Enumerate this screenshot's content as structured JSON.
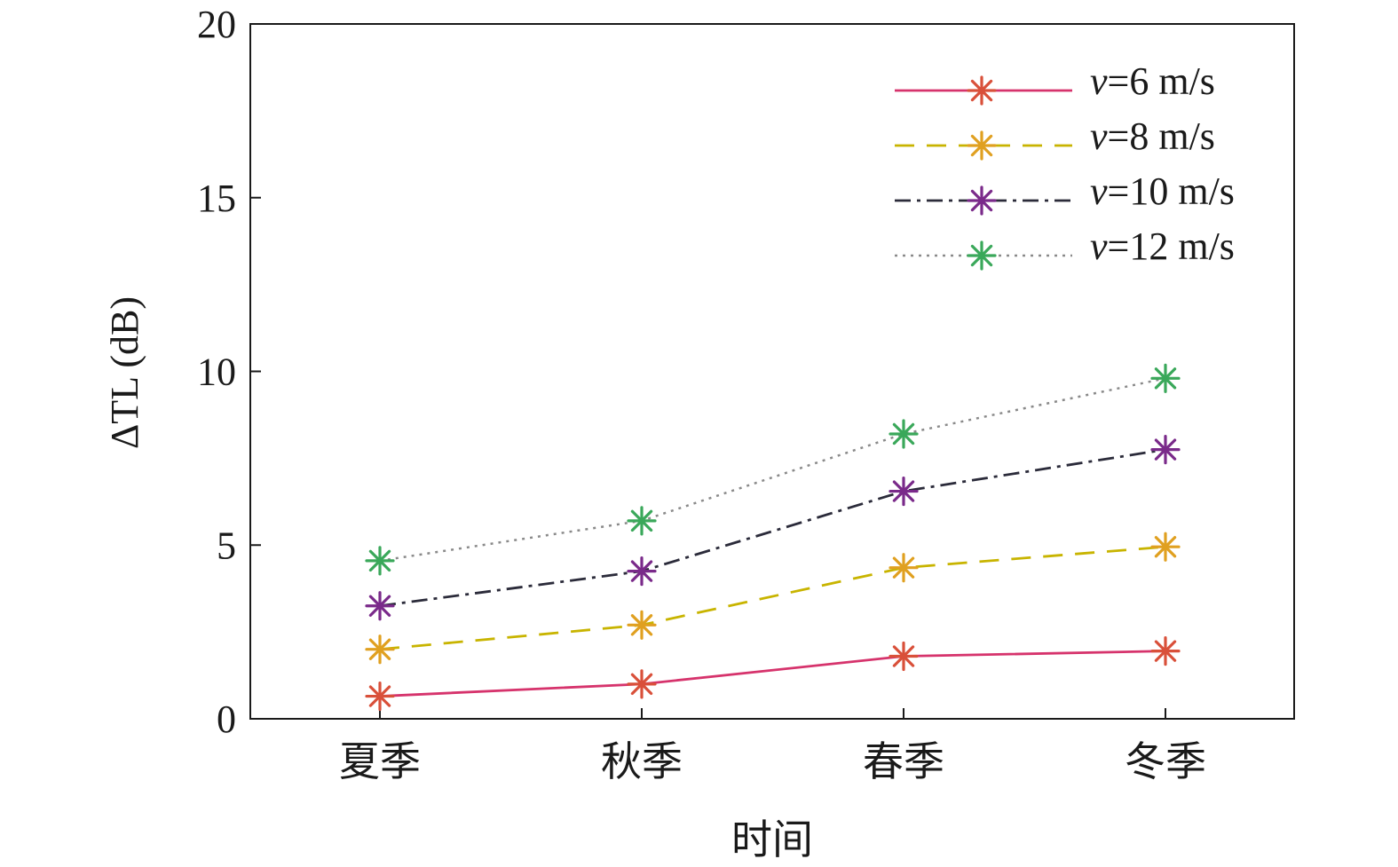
{
  "chart_data": {
    "type": "line",
    "title": "",
    "xlabel": "时间",
    "ylabel": "ΔTL (dB)",
    "categories": [
      "夏季",
      "秋季",
      "春季",
      "冬季"
    ],
    "ylim": [
      0,
      20
    ],
    "yticks": [
      0,
      5,
      10,
      15,
      20
    ],
    "grid": false,
    "legend_position": "top-right",
    "series": [
      {
        "name": "v=6 m/s",
        "name_var": "v",
        "name_rest": "=6 m/s",
        "values": [
          0.65,
          1.0,
          1.8,
          1.95
        ],
        "line_color": "#d6336c",
        "marker_color": "#d9503a",
        "dash": "solid"
      },
      {
        "name": "v=8 m/s",
        "name_var": "v",
        "name_rest": "=8 m/s",
        "values": [
          2.0,
          2.7,
          4.35,
          4.95
        ],
        "line_color": "#c8b400",
        "line_color_alt": "#9a9a9a",
        "marker_color": "#e0a020",
        "dash": "dashed"
      },
      {
        "name": "v=10 m/s",
        "name_var": "v",
        "name_rest": "=10 m/s",
        "values": [
          3.25,
          4.25,
          6.55,
          7.75
        ],
        "line_color": "#2b2b3a",
        "marker_color": "#7a2a8a",
        "dash": "dashdot"
      },
      {
        "name": "v=12 m/s",
        "name_var": "v",
        "name_rest": "=12 m/s",
        "values": [
          4.55,
          5.7,
          8.2,
          9.8
        ],
        "line_color": "#8a8a8a",
        "marker_color": "#3aa85a",
        "dash": "dotted"
      }
    ]
  }
}
